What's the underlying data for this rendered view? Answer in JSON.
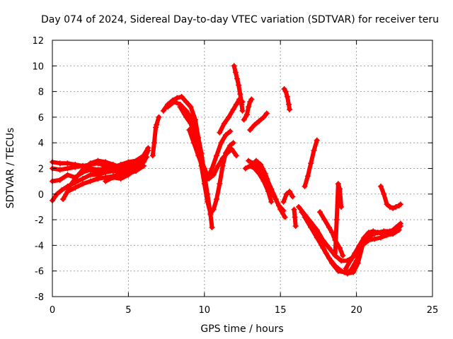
{
  "chart_data": {
    "type": "scatter",
    "title": "Day 074 of 2024, Sidereal Day-to-day VTEC variation (SDTVAR) for receiver teru",
    "xlabel": "GPS time / hours",
    "ylabel": "SDTVAR / TECUs",
    "xlim": [
      0,
      25
    ],
    "ylim": [
      -8,
      12
    ],
    "xticks": [
      0,
      5,
      10,
      15,
      20,
      25
    ],
    "yticks": [
      -8,
      -6,
      -4,
      -2,
      0,
      2,
      4,
      6,
      8,
      10,
      12
    ],
    "grid": true,
    "marker": "+",
    "color": "#ff0000",
    "series": [
      {
        "x": [
          0.0,
          0.5,
          1.0,
          1.5,
          2.0,
          2.5,
          3.0,
          3.5,
          4.0,
          4.5,
          5.0,
          5.5,
          6.0,
          6.3
        ],
        "y": [
          2.5,
          2.4,
          2.4,
          2.3,
          2.2,
          2.3,
          2.4,
          2.2,
          2.1,
          2.3,
          2.5,
          2.6,
          3.0,
          3.6
        ]
      },
      {
        "x": [
          0.0,
          0.5,
          1.0,
          1.5,
          2.0,
          2.5,
          3.0,
          3.5,
          4.0,
          4.5,
          5.0,
          5.5,
          6.0
        ],
        "y": [
          2.0,
          1.9,
          2.0,
          2.1,
          2.2,
          2.0,
          1.9,
          2.0,
          2.1,
          2.2,
          2.2,
          2.4,
          2.8
        ]
      },
      {
        "x": [
          0.0,
          0.3,
          0.6,
          1.0,
          1.5,
          2.0,
          2.5,
          3.0,
          3.5,
          4.0,
          4.5,
          5.0,
          5.5,
          6.0,
          6.2
        ],
        "y": [
          -0.5,
          0.0,
          0.3,
          0.6,
          0.9,
          1.2,
          1.5,
          1.5,
          1.7,
          1.8,
          1.9,
          2.0,
          2.1,
          2.5,
          2.9
        ]
      },
      {
        "x": [
          0.7,
          1.0,
          1.5,
          2.0,
          2.5,
          3.0,
          3.5,
          4.0,
          4.5,
          5.0,
          5.5,
          6.0
        ],
        "y": [
          -0.4,
          0.2,
          0.5,
          0.8,
          1.0,
          1.2,
          1.3,
          1.4,
          1.5,
          1.6,
          1.8,
          2.2
        ]
      },
      {
        "x": [
          0.0,
          0.5,
          1.0,
          1.5,
          2.0,
          2.5,
          3.0,
          3.5,
          4.0,
          4.5,
          5.0,
          5.5,
          6.0
        ],
        "y": [
          1.0,
          1.1,
          1.5,
          1.3,
          1.7,
          1.9,
          1.6,
          1.7,
          1.8,
          1.7,
          1.6,
          2.0,
          2.5
        ]
      },
      {
        "x": [
          1.0,
          1.5,
          2.0,
          2.5,
          3.0,
          3.5,
          4.0,
          4.5,
          5.0,
          5.5
        ],
        "y": [
          0.4,
          1.2,
          1.9,
          2.4,
          2.6,
          2.5,
          2.3,
          2.1,
          1.9,
          2.3
        ]
      },
      {
        "x": [
          3.5,
          4.0,
          4.5,
          5.0,
          5.5,
          6.0,
          6.3
        ],
        "y": [
          1.0,
          1.3,
          1.2,
          1.5,
          2.0,
          2.6,
          3.4
        ]
      },
      {
        "x": [
          6.6,
          6.7,
          6.8,
          6.85,
          7.0
        ],
        "y": [
          3.0,
          4.0,
          5.2,
          5.4,
          6.0
        ]
      },
      {
        "x": [
          7.3,
          7.6,
          7.9,
          8.2,
          8.5,
          8.8,
          9.1,
          9.4,
          9.6,
          9.8,
          10.0,
          10.2,
          10.4,
          10.5
        ],
        "y": [
          6.5,
          7.0,
          7.3,
          7.5,
          7.6,
          7.2,
          6.8,
          5.8,
          4.4,
          3.2,
          1.5,
          0.0,
          -1.6,
          -2.6
        ]
      },
      {
        "x": [
          7.6,
          8.0,
          8.4,
          8.8,
          9.1,
          9.4,
          9.6,
          9.8,
          10.0,
          10.2,
          10.4,
          10.6,
          10.8,
          11.0,
          11.2,
          11.4,
          11.7,
          11.9
        ],
        "y": [
          6.8,
          7.2,
          7.0,
          6.5,
          6.0,
          5.0,
          3.6,
          2.2,
          0.8,
          -0.6,
          -1.5,
          -1.2,
          -0.4,
          0.8,
          2.2,
          3.2,
          3.8,
          4.0
        ]
      },
      {
        "x": [
          8.4,
          8.8,
          9.1,
          9.4,
          9.7,
          10.0,
          10.3,
          10.6,
          10.9,
          11.2,
          11.5,
          11.8,
          12.1
        ],
        "y": [
          6.8,
          6.0,
          5.5,
          4.2,
          3.0,
          2.0,
          1.2,
          1.5,
          2.2,
          2.8,
          3.2,
          3.5,
          3.0
        ]
      },
      {
        "x": [
          9.0,
          9.3,
          9.6,
          9.9,
          10.2,
          10.5,
          10.8,
          11.1,
          11.4,
          11.7
        ],
        "y": [
          5.0,
          4.0,
          3.0,
          2.0,
          1.2,
          2.0,
          3.0,
          4.0,
          4.6,
          4.9
        ]
      },
      {
        "x": [
          11.0,
          11.3,
          11.6,
          11.9,
          12.1,
          12.3,
          12.5
        ],
        "y": [
          4.8,
          5.5,
          6.0,
          6.6,
          7.0,
          7.4,
          7.2
        ]
      },
      {
        "x": [
          11.95,
          12.05,
          12.15,
          12.25,
          12.35,
          12.45,
          12.5
        ],
        "y": [
          10.0,
          9.5,
          9.0,
          8.5,
          7.8,
          7.0,
          6.5
        ]
      },
      {
        "x": [
          12.6,
          12.8,
          12.9,
          13.0,
          13.1
        ],
        "y": [
          5.8,
          6.2,
          6.8,
          7.2,
          7.4
        ]
      },
      {
        "x": [
          12.7,
          13.0,
          13.3,
          13.6,
          13.9,
          14.2,
          14.4
        ],
        "y": [
          2.0,
          2.2,
          2.0,
          1.6,
          1.0,
          0.2,
          -0.6
        ]
      },
      {
        "x": [
          12.9,
          13.2,
          13.5,
          13.8,
          14.1,
          14.4,
          14.7,
          15.0,
          15.3
        ],
        "y": [
          2.6,
          2.4,
          2.2,
          1.8,
          1.2,
          0.4,
          -0.4,
          -1.2,
          -1.8
        ]
      },
      {
        "x": [
          13.4,
          13.7,
          14.0,
          14.3,
          14.6,
          14.9,
          15.2
        ],
        "y": [
          2.6,
          2.3,
          1.6,
          0.6,
          -0.2,
          -0.9,
          -1.3
        ]
      },
      {
        "x": [
          13.0,
          13.3,
          13.6,
          13.9,
          14.1
        ],
        "y": [
          5.0,
          5.4,
          5.7,
          6.0,
          6.3
        ]
      },
      {
        "x": [
          15.25,
          15.35,
          15.45,
          15.55,
          15.6
        ],
        "y": [
          8.2,
          8.0,
          7.6,
          7.0,
          6.6
        ]
      },
      {
        "x": [
          15.2,
          15.4,
          15.6,
          15.8
        ],
        "y": [
          -0.6,
          0.0,
          0.2,
          -0.2
        ]
      },
      {
        "x": [
          15.9,
          15.95,
          16.0
        ],
        "y": [
          -1.2,
          -1.8,
          -2.5
        ]
      },
      {
        "x": [
          16.2,
          16.6,
          17.0,
          17.4,
          17.8,
          18.2,
          18.6,
          19.0,
          19.4,
          19.8,
          20.2,
          20.6,
          21.0,
          21.4,
          21.8,
          22.2,
          22.6,
          22.9
        ],
        "y": [
          -1.0,
          -1.6,
          -2.2,
          -2.8,
          -3.6,
          -4.2,
          -4.8,
          -5.2,
          -5.2,
          -4.9,
          -4.0,
          -3.4,
          -3.2,
          -3.0,
          -2.9,
          -2.9,
          -2.8,
          -2.5
        ]
      },
      {
        "x": [
          16.4,
          16.8,
          17.2,
          17.6,
          18.0,
          18.4,
          18.8,
          19.2,
          19.6,
          20.0,
          20.4,
          20.8,
          21.2,
          21.6,
          22.0,
          22.4,
          22.8
        ],
        "y": [
          -1.4,
          -2.0,
          -2.8,
          -3.6,
          -4.6,
          -5.4,
          -6.0,
          -6.1,
          -6.0,
          -5.2,
          -4.0,
          -3.6,
          -3.5,
          -3.4,
          -3.2,
          -3.1,
          -2.8
        ]
      },
      {
        "x": [
          16.6,
          17.0,
          17.4,
          17.8,
          18.2,
          18.6,
          19.0,
          19.4,
          19.8,
          20.1,
          20.4,
          20.8,
          21.2
        ],
        "y": [
          -1.8,
          -2.6,
          -3.4,
          -4.2,
          -5.0,
          -5.6,
          -6.0,
          -6.2,
          -6.1,
          -5.4,
          -4.0,
          -3.2,
          -3.0
        ]
      },
      {
        "x": [
          16.6,
          16.8,
          17.0,
          17.2,
          17.4
        ],
        "y": [
          0.6,
          1.4,
          2.4,
          3.4,
          4.2
        ]
      },
      {
        "x": [
          17.6,
          17.9,
          18.2,
          18.4,
          18.6,
          18.9,
          19.1
        ],
        "y": [
          -1.4,
          -2.0,
          -2.6,
          -3.0,
          -3.6,
          -4.2,
          -4.8
        ]
      },
      {
        "x": [
          18.6,
          18.7,
          18.8,
          18.9,
          19.0
        ],
        "y": [
          -4.8,
          -2.0,
          0.8,
          0.4,
          -1.0
        ]
      },
      {
        "x": [
          19.3,
          19.6,
          19.9,
          20.2,
          20.5,
          20.8,
          21.1,
          21.4,
          21.7,
          22.0,
          22.3,
          22.6,
          22.9
        ],
        "y": [
          -5.8,
          -5.2,
          -4.6,
          -4.0,
          -3.4,
          -3.0,
          -2.9,
          -3.0,
          -3.1,
          -3.0,
          -2.9,
          -2.6,
          -2.3
        ]
      },
      {
        "x": [
          21.6,
          21.8,
          22.0,
          22.2,
          22.4,
          22.6,
          22.8,
          22.9
        ],
        "y": [
          0.6,
          0.0,
          -0.8,
          -1.0,
          -1.1,
          -1.0,
          -0.9,
          -0.8
        ]
      }
    ]
  }
}
